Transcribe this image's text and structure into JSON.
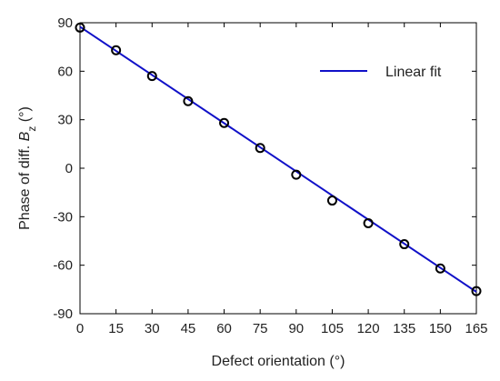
{
  "chart_data": {
    "type": "scatter",
    "xlabel": "Defect orientation (°)",
    "ylabel": {
      "prefix": "Phase of diff. ",
      "var": "B",
      "sub": "z",
      "suffix": " (°)"
    },
    "xlim": [
      0,
      165
    ],
    "ylim": [
      -90,
      90
    ],
    "xticks": [
      0,
      15,
      30,
      45,
      60,
      75,
      90,
      105,
      120,
      135,
      150,
      165
    ],
    "yticks": [
      90,
      60,
      30,
      0,
      -30,
      -60,
      -90
    ],
    "grid": false,
    "legend_position": "top-right",
    "series": [
      {
        "kind": "markers",
        "marker": "open-circle",
        "color": "#000000",
        "x": [
          0,
          15,
          30,
          45,
          60,
          75,
          90,
          105,
          120,
          135,
          150,
          165
        ],
        "y": [
          87,
          73,
          57,
          41.5,
          28,
          12.5,
          -4,
          -20,
          -34,
          -47,
          -62,
          -76
        ]
      },
      {
        "name": "Linear fit",
        "kind": "line",
        "color": "#1010c8",
        "x": [
          0,
          165
        ],
        "y": [
          87.5,
          -76.5
        ]
      }
    ]
  }
}
